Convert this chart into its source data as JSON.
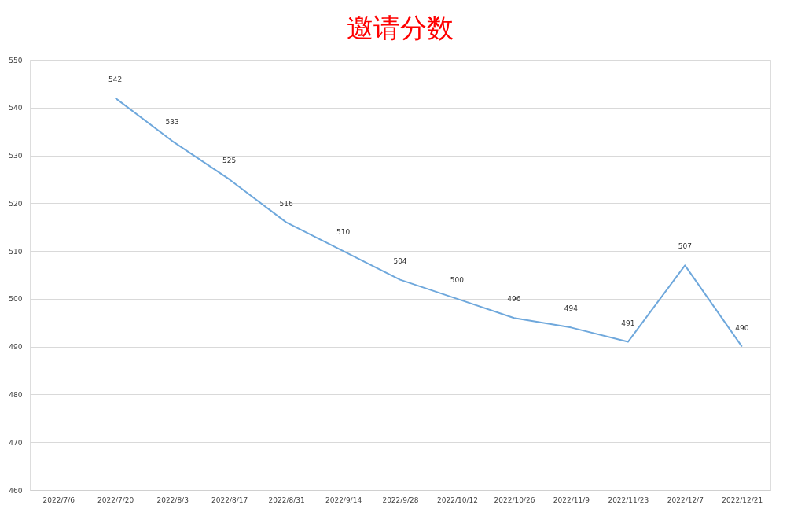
{
  "chart_data": {
    "type": "line",
    "title": "邀请分数",
    "categories": [
      "2022/7/6",
      "2022/7/20",
      "2022/8/3",
      "2022/8/17",
      "2022/8/31",
      "2022/9/14",
      "2022/9/28",
      "2022/10/12",
      "2022/10/26",
      "2022/11/9",
      "2022/11/23",
      "2022/12/7",
      "2022/12/21"
    ],
    "series": [
      {
        "color": "#6fa8dc",
        "values": [
          null,
          542,
          533,
          525,
          516,
          510,
          504,
          500,
          496,
          494,
          491,
          507,
          490
        ],
        "value_labels": [
          null,
          "542",
          "533",
          "525",
          "516",
          "510",
          "504",
          "500",
          "496",
          "494",
          "491",
          "507",
          "490"
        ]
      }
    ],
    "ylim": [
      460,
      550
    ],
    "yticks": [
      460,
      470,
      480,
      490,
      500,
      510,
      520,
      530,
      540,
      550
    ],
    "grid": "y",
    "marker": "none",
    "line_style": "solid"
  }
}
